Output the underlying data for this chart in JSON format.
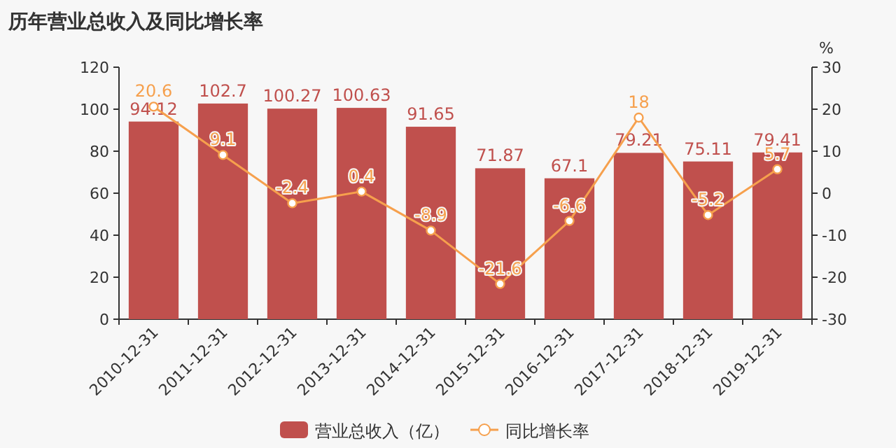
{
  "chart_data": {
    "type": "bar",
    "title": "历年营业总收入及同比增长率",
    "y2label": "%",
    "categories": [
      "2010-12-31",
      "2011-12-31",
      "2012-12-31",
      "2013-12-31",
      "2014-12-31",
      "2015-12-31",
      "2016-12-31",
      "2017-12-31",
      "2018-12-31",
      "2019-12-31"
    ],
    "series": [
      {
        "name": "营业总收入（亿）",
        "color": "#c0504d",
        "values": [
          94.12,
          102.7,
          100.27,
          100.63,
          91.65,
          71.87,
          67.1,
          79.21,
          75.11,
          79.41
        ]
      },
      {
        "name": "同比增长率",
        "type": "line",
        "axis": "y2",
        "color": "#f6a04d",
        "marker": "circle",
        "values": [
          20.6,
          9.1,
          -2.4,
          0.4,
          -8.9,
          -21.6,
          -6.6,
          18,
          -5.2,
          5.7
        ]
      }
    ],
    "ylim": [
      0,
      120
    ],
    "yticks": [
      0,
      20,
      40,
      60,
      80,
      100,
      120
    ],
    "y2lim": [
      -30,
      30
    ],
    "y2ticks": [
      -30,
      -20,
      -10,
      0,
      10,
      20,
      30
    ],
    "data_labels": true,
    "grid": false,
    "legend": "bottom"
  }
}
